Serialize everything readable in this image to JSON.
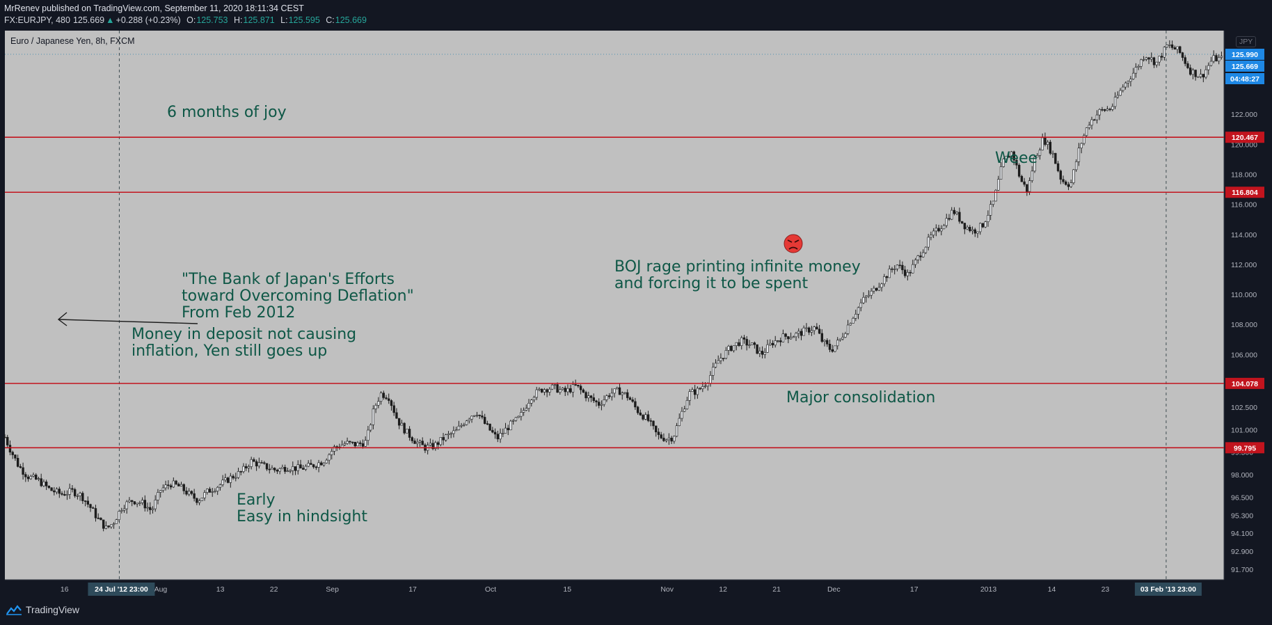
{
  "header": {
    "publisher_line": "MrRenev published on TradingView.com, September 11, 2020 18:11:34 CEST",
    "symbol": "FX:EURJPY, 480",
    "last": "125.669",
    "change": "+0.288 (+0.23%)",
    "open_label": "O:",
    "open": "125.753",
    "high_label": "H:",
    "high": "125.871",
    "low_label": "L:",
    "low": "125.595",
    "close_label": "C:",
    "close": "125.669"
  },
  "footer": {
    "brand": "TradingView"
  },
  "currency": "JPY",
  "annotations": {
    "joy": "6 months of joy",
    "boj_paper": "\"The Bank of Japan's Efforts\ntoward Overcoming Deflation\"\nFrom Feb 2012",
    "deposit": "Money in deposit not causing\ninflation, Yen still goes up",
    "boj_rage": "BOJ rage printing infinite money\nand forcing it to be spent",
    "weee": "Weee",
    "consolidation": "Major consolidation",
    "early": "Early\nEasy in hindsight"
  },
  "colors": {
    "background": "#131722",
    "pane": "#c0c0c0",
    "level_line": "#c2141e",
    "annotation": "#0e5746",
    "candle_up": "#e8ebef",
    "candle_down": "#1c1c1c",
    "crosshair_label": "#2e4a5a",
    "price_label": "#1e88e5"
  },
  "chart_data": {
    "type": "candlestick",
    "title": "Euro / Japanese Yen, 8h, FXCM",
    "ylim": [
      90.8,
      127.5
    ],
    "y_ticks": [
      91.7,
      92.9,
      94.1,
      95.3,
      96.5,
      98.0,
      99.5,
      101.0,
      102.5,
      104.0,
      106.0,
      108.0,
      110.0,
      112.0,
      114.0,
      116.0,
      118.0,
      120.0,
      122.0
    ],
    "y_tick_labels": [
      "91.700",
      "92.900",
      "94.100",
      "95.300",
      "96.500",
      "98.000",
      "99.500",
      "101.000",
      "102.500",
      "104.000",
      "106.000",
      "108.000",
      "110.000",
      "112.000",
      "114.000",
      "116.000",
      "118.000",
      "120.000",
      "122.000"
    ],
    "x_ticks": [
      {
        "label": "16",
        "t": 0.049
      },
      {
        "label": "Aug",
        "t": 0.128
      },
      {
        "label": "13",
        "t": 0.177
      },
      {
        "label": "22",
        "t": 0.221
      },
      {
        "label": "Sep",
        "t": 0.269
      },
      {
        "label": "17",
        "t": 0.335
      },
      {
        "label": "Oct",
        "t": 0.399
      },
      {
        "label": "15",
        "t": 0.462
      },
      {
        "label": "Nov",
        "t": 0.544
      },
      {
        "label": "12",
        "t": 0.59
      },
      {
        "label": "21",
        "t": 0.634
      },
      {
        "label": "Dec",
        "t": 0.681
      },
      {
        "label": "17",
        "t": 0.747
      },
      {
        "label": "2013",
        "t": 0.808
      },
      {
        "label": "14",
        "t": 0.86
      },
      {
        "label": "23",
        "t": 0.904
      }
    ],
    "horizontal_levels": [
      {
        "label": "120.467",
        "value": 120.467
      },
      {
        "label": "116.804",
        "value": 116.804
      },
      {
        "label": "104.078",
        "value": 104.078
      },
      {
        "label": "99.795",
        "value": 99.795
      }
    ],
    "vertical_markers": [
      {
        "label": "24 Jul '12   23:00",
        "t": 0.094
      },
      {
        "label": "03 Feb '13   23:00",
        "t": 0.954
      }
    ],
    "price_labels": [
      {
        "label": "125.990",
        "value": 125.99
      },
      {
        "label": "125.669",
        "value": 125.669
      },
      {
        "label": "04:48:27",
        "value": null
      }
    ],
    "dotted_level": 125.99,
    "close_path": [
      [
        0.0,
        100.5
      ],
      [
        0.004,
        99.8
      ],
      [
        0.012,
        98.6
      ],
      [
        0.02,
        97.9
      ],
      [
        0.03,
        97.6
      ],
      [
        0.04,
        97.0
      ],
      [
        0.05,
        96.7
      ],
      [
        0.06,
        96.9
      ],
      [
        0.068,
        96.6
      ],
      [
        0.076,
        95.8
      ],
      [
        0.083,
        95.0
      ],
      [
        0.09,
        94.4
      ],
      [
        0.096,
        94.8
      ],
      [
        0.104,
        95.9
      ],
      [
        0.113,
        96.3
      ],
      [
        0.122,
        96.1
      ],
      [
        0.13,
        95.6
      ],
      [
        0.138,
        97.0
      ],
      [
        0.147,
        97.4
      ],
      [
        0.155,
        97.2
      ],
      [
        0.163,
        96.7
      ],
      [
        0.171,
        96.3
      ],
      [
        0.18,
        96.9
      ],
      [
        0.19,
        97.3
      ],
      [
        0.2,
        97.8
      ],
      [
        0.21,
        98.2
      ],
      [
        0.218,
        98.9
      ],
      [
        0.228,
        98.6
      ],
      [
        0.24,
        98.3
      ],
      [
        0.25,
        98.5
      ],
      [
        0.262,
        98.4
      ],
      [
        0.272,
        98.6
      ],
      [
        0.282,
        98.9
      ],
      [
        0.292,
        99.8
      ],
      [
        0.302,
        100.1
      ],
      [
        0.312,
        100.0
      ],
      [
        0.32,
        100.2
      ],
      [
        0.327,
        102.4
      ],
      [
        0.333,
        103.4
      ],
      [
        0.34,
        103.2
      ],
      [
        0.348,
        101.6
      ],
      [
        0.356,
        100.8
      ],
      [
        0.364,
        100.2
      ],
      [
        0.372,
        99.8
      ],
      [
        0.38,
        99.9
      ],
      [
        0.39,
        100.5
      ],
      [
        0.4,
        100.9
      ],
      [
        0.41,
        101.8
      ],
      [
        0.418,
        102.2
      ],
      [
        0.426,
        101.3
      ],
      [
        0.436,
        100.4
      ],
      [
        0.446,
        101.2
      ],
      [
        0.456,
        101.8
      ],
      [
        0.466,
        103.2
      ],
      [
        0.476,
        103.7
      ],
      [
        0.486,
        103.8
      ],
      [
        0.496,
        103.5
      ],
      [
        0.506,
        103.9
      ],
      [
        0.516,
        103.2
      ],
      [
        0.526,
        102.7
      ],
      [
        0.536,
        103.4
      ],
      [
        0.544,
        103.6
      ],
      [
        0.552,
        103.2
      ],
      [
        0.56,
        102.3
      ],
      [
        0.57,
        101.6
      ],
      [
        0.578,
        100.6
      ],
      [
        0.586,
        100.4
      ],
      [
        0.592,
        100.5
      ],
      [
        0.598,
        101.8
      ],
      [
        0.606,
        103.4
      ],
      [
        0.614,
        103.6
      ],
      [
        0.622,
        104.2
      ],
      [
        0.632,
        105.6
      ],
      [
        0.642,
        106.4
      ],
      [
        0.652,
        106.9
      ],
      [
        0.662,
        106.6
      ],
      [
        0.67,
        106.0
      ],
      [
        0.68,
        106.8
      ],
      [
        0.69,
        107.2
      ],
      [
        0.7,
        107.3
      ],
      [
        0.71,
        107.6
      ],
      [
        0.718,
        107.8
      ],
      [
        0.724,
        106.9
      ],
      [
        0.732,
        106.3
      ],
      [
        0.74,
        107.0
      ],
      [
        0.75,
        108.4
      ],
      [
        0.76,
        109.6
      ],
      [
        0.77,
        110.3
      ],
      [
        0.78,
        111.2
      ],
      [
        0.79,
        112.0
      ],
      [
        0.8,
        111.3
      ],
      [
        0.81,
        112.6
      ],
      [
        0.82,
        113.8
      ],
      [
        0.83,
        114.6
      ],
      [
        0.84,
        115.6
      ],
      [
        0.85,
        114.6
      ],
      [
        0.858,
        114.2
      ],
      [
        0.866,
        114.6
      ],
      [
        0.876,
        116.2
      ],
      [
        0.884,
        118.8
      ],
      [
        0.892,
        119.5
      ],
      [
        0.9,
        117.6
      ],
      [
        0.906,
        116.9
      ],
      [
        0.912,
        119.0
      ],
      [
        0.92,
        120.4
      ],
      [
        0.928,
        119.4
      ],
      [
        0.936,
        117.6
      ],
      [
        0.944,
        117.3
      ],
      [
        0.952,
        119.8
      ],
      [
        0.96,
        121.4
      ],
      [
        0.97,
        122.2
      ],
      [
        0.98,
        122.4
      ],
      [
        0.99,
        123.8
      ],
      [
        1.0,
        124.8
      ],
      [
        1.01,
        126.0
      ],
      [
        1.02,
        125.4
      ],
      [
        1.03,
        126.6
      ],
      [
        1.04,
        126.2
      ],
      [
        1.05,
        124.9
      ],
      [
        1.06,
        124.5
      ],
      [
        1.07,
        125.7
      ],
      [
        1.08,
        125.67
      ]
    ]
  }
}
